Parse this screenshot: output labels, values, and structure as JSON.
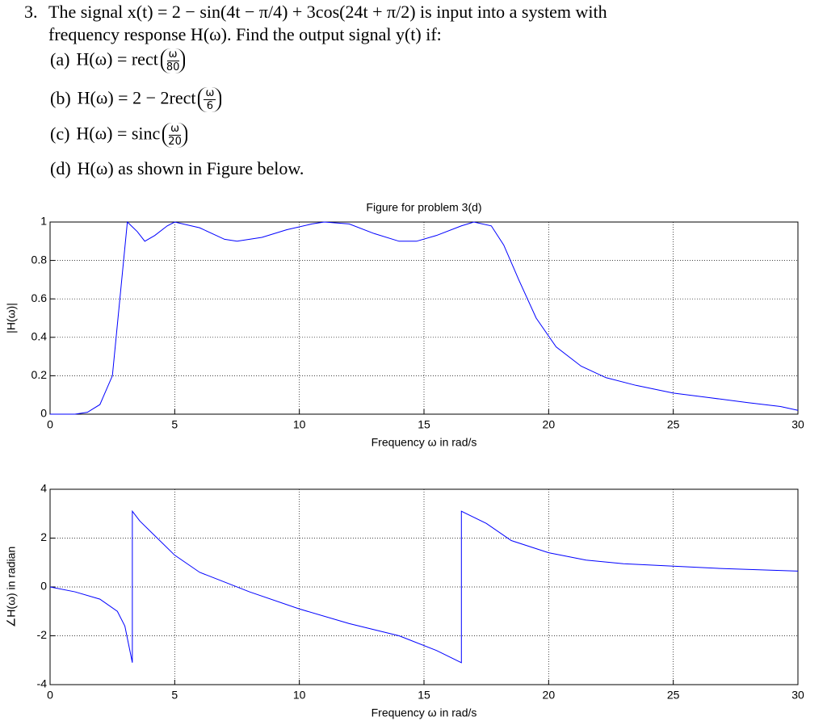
{
  "problem": {
    "number": "3.",
    "lines": [
      "The signal x(t) = 2 − sin(4t − π/4) + 3cos(24t + π/2) is input into a system with",
      "frequency response H(ω). Find the output signal y(t) if:"
    ],
    "parts": [
      {
        "label": "(a)",
        "expr": "H(ω) = rect",
        "num": "ω",
        "den": "80"
      },
      {
        "label": "(b)",
        "expr": "H(ω) = 2 − 2rect",
        "num": "ω",
        "den": "6"
      },
      {
        "label": "(c)",
        "expr": "H(ω) = sinc",
        "num": "ω",
        "den": "20"
      },
      {
        "label": "(d)",
        "text": "H(ω)  as shown in Figure below."
      }
    ]
  },
  "chart_data": [
    {
      "type": "line",
      "title": "Figure for problem 3(d)",
      "x_label": "Frequency ω in rad/s",
      "y_label": "|H(ω)|",
      "x": [
        0,
        1,
        1.5,
        2,
        2.5,
        2.8,
        3.1,
        3.5,
        3.8,
        4.2,
        4.7,
        5,
        6,
        7,
        7.5,
        8.5,
        9.5,
        10.5,
        11,
        12,
        13,
        14,
        14.7,
        15.5,
        16.5,
        17,
        17.7,
        18.2,
        18.8,
        19.5,
        20.3,
        21.3,
        22.3,
        23.5,
        25,
        26.5,
        28,
        29.3,
        30
      ],
      "series": [
        {
          "color": "#0000ff",
          "values": [
            0,
            0,
            0.01,
            0.05,
            0.2,
            0.6,
            1.0,
            0.95,
            0.9,
            0.93,
            0.98,
            1.0,
            0.97,
            0.91,
            0.9,
            0.92,
            0.96,
            0.99,
            1.0,
            0.99,
            0.94,
            0.9,
            0.9,
            0.93,
            0.98,
            1.0,
            0.98,
            0.88,
            0.7,
            0.5,
            0.35,
            0.25,
            0.19,
            0.15,
            0.11,
            0.085,
            0.06,
            0.04,
            0.02
          ]
        }
      ],
      "xlim": [
        0,
        30
      ],
      "xticks": [
        0,
        5,
        10,
        15,
        20,
        25,
        30
      ],
      "ylim": [
        0,
        1
      ],
      "yticks": [
        0,
        0.2,
        0.4,
        0.6,
        0.8,
        1
      ],
      "grid": true
    },
    {
      "type": "line",
      "x_label": "Frequency ω in rad/s",
      "y_label": "∠H(ω) in radian",
      "x": [
        0,
        1,
        2,
        2.7,
        3.0,
        3.3,
        3.3,
        3.6,
        4.2,
        5,
        6,
        7,
        8,
        10,
        12,
        14,
        15.5,
        16.5,
        16.5,
        17.5,
        18.5,
        20,
        21.5,
        23,
        25,
        27,
        30
      ],
      "series": [
        {
          "color": "#0000ff",
          "values": [
            0,
            -0.2,
            -0.5,
            -1.0,
            -1.6,
            -3.1,
            3.1,
            2.7,
            2.1,
            1.3,
            0.6,
            0.2,
            -0.2,
            -0.9,
            -1.5,
            -2.0,
            -2.6,
            -3.1,
            3.1,
            2.6,
            1.9,
            1.4,
            1.1,
            0.95,
            0.85,
            0.75,
            0.65
          ]
        }
      ],
      "xlim": [
        0,
        30
      ],
      "xticks": [
        0,
        5,
        10,
        15,
        20,
        25,
        30
      ],
      "ylim": [
        -4,
        4
      ],
      "yticks": [
        -4,
        -2,
        0,
        2,
        4
      ],
      "grid": true
    }
  ]
}
